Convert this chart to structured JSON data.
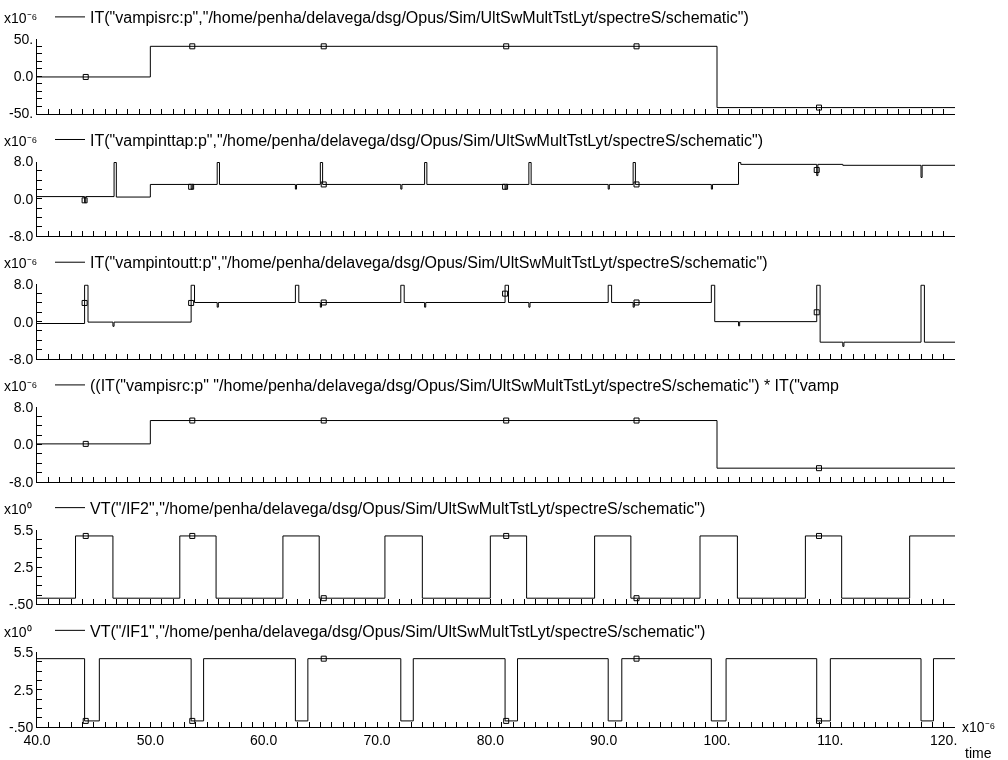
{
  "chart_data": [
    {
      "type": "step",
      "ylabel": "x10⁻⁶",
      "legend": "top left",
      "tick_labels": "y",
      "xlim": [
        40,
        121
      ],
      "xticks": [
        40,
        41,
        42,
        43,
        44,
        45,
        46,
        47,
        48,
        49,
        50,
        51,
        52,
        53,
        54,
        55,
        56,
        57,
        58,
        59,
        60,
        61,
        62,
        63,
        64,
        65,
        66,
        67,
        68,
        69,
        70,
        71,
        72,
        73,
        74,
        75,
        76,
        77,
        78,
        79,
        80,
        81,
        82,
        83,
        84,
        85,
        86,
        87,
        88,
        89,
        90,
        91,
        92,
        93,
        94,
        95,
        96,
        97,
        98,
        99,
        100,
        101,
        102,
        103,
        104,
        105,
        106,
        107,
        108,
        109,
        110,
        111,
        112,
        113,
        114,
        115,
        116,
        117,
        118,
        119,
        120
      ],
      "ylim": [
        -50,
        50
      ],
      "yticks": [
        {
          "value": -50,
          "label": "-50."
        },
        {
          "value": -40,
          "label": null
        },
        {
          "value": -30,
          "label": null
        },
        {
          "value": -20,
          "label": null
        },
        {
          "value": -10,
          "label": null
        },
        {
          "value": 0,
          "label": "0.0"
        },
        {
          "value": 10,
          "label": null
        },
        {
          "value": 20,
          "label": null
        },
        {
          "value": 30,
          "label": null
        },
        {
          "value": 40,
          "label": null
        },
        {
          "value": 50,
          "label": "50."
        }
      ],
      "series": [
        {
          "name": "IT(\"vampisrc:p\",\"/home/penha/delavega/dsg/Opus/Sim/UltSwMultTstLyt/spectreS/schematic\")",
          "color": "#000000",
          "x": [
            40,
            50,
            100,
            121
          ],
          "values": [
            -1,
            40,
            -42,
            -42
          ]
        },
        {
          "type": "scatter",
          "marker": "square",
          "color": "#000000",
          "x": [
            44.3,
            53.7,
            65.3,
            81.4,
            92.9,
            109.0
          ],
          "values": [
            -1,
            40,
            40,
            40,
            40,
            -42
          ]
        }
      ]
    },
    {
      "type": "step",
      "ylabel": "x10⁻⁶",
      "legend": "top left",
      "tick_labels": "y",
      "xlim": [
        40,
        121
      ],
      "xticks": [
        40,
        41,
        42,
        43,
        44,
        45,
        46,
        47,
        48,
        49,
        50,
        51,
        52,
        53,
        54,
        55,
        56,
        57,
        58,
        59,
        60,
        61,
        62,
        63,
        64,
        65,
        66,
        67,
        68,
        69,
        70,
        71,
        72,
        73,
        74,
        75,
        76,
        77,
        78,
        79,
        80,
        81,
        82,
        83,
        84,
        85,
        86,
        87,
        88,
        89,
        90,
        91,
        92,
        93,
        94,
        95,
        96,
        97,
        98,
        99,
        100,
        101,
        102,
        103,
        104,
        105,
        106,
        107,
        108,
        109,
        110,
        111,
        112,
        113,
        114,
        115,
        116,
        117,
        118,
        119,
        120
      ],
      "ylim": [
        -8,
        8
      ],
      "yticks": [
        {
          "value": -8,
          "label": "-8.0"
        },
        {
          "value": -6,
          "label": null
        },
        {
          "value": -4,
          "label": null
        },
        {
          "value": -2,
          "label": null
        },
        {
          "value": 0,
          "label": "0.0"
        },
        {
          "value": 2,
          "label": null
        },
        {
          "value": 4,
          "label": null
        },
        {
          "value": 6,
          "label": null
        },
        {
          "value": 8,
          "label": "8.0"
        }
      ],
      "series": [
        {
          "name": "IT(\"vampinttap:p\",\"/home/penha/delavega/dsg/Opus/Sim/UltSwMultTstLyt/spectreS/schematic\")",
          "color": "#000000",
          "x": [
            40,
            44.2,
            44.3,
            46.8,
            47.0,
            50.0,
            53.6,
            53.7,
            55.9,
            56.1,
            62.8,
            62.9,
            65.0,
            65.2,
            72.1,
            72.2,
            74.2,
            74.4,
            81.3,
            81.4,
            83.4,
            83.6,
            90.4,
            90.5,
            92.6,
            92.8,
            99.5,
            99.6,
            101.9,
            102.1,
            108.8,
            108.9,
            111.1,
            118.0,
            118.1,
            121
          ],
          "values": [
            0.5,
            -0.8,
            0.5,
            7.8,
            0.4,
            3.1,
            2.1,
            3.1,
            7.8,
            3.1,
            2.1,
            3.1,
            7.8,
            3.1,
            2.1,
            3.1,
            7.8,
            3.1,
            2.1,
            3.1,
            7.8,
            3.1,
            2.1,
            3.1,
            7.8,
            3.1,
            2.1,
            3.1,
            7.8,
            7.4,
            5.0,
            7.4,
            7.2,
            4.6,
            7.2,
            7.2
          ]
        },
        {
          "type": "scatter",
          "marker": "square",
          "color": "#000000",
          "x": [
            44.2,
            53.6,
            65.3,
            81.3,
            92.9,
            108.8
          ],
          "values": [
            -0.3,
            2.6,
            3.1,
            2.6,
            3.1,
            6.2
          ]
        }
      ]
    },
    {
      "type": "step",
      "ylabel": "x10⁻⁶",
      "legend": "top left",
      "tick_labels": "y",
      "xlim": [
        40,
        121
      ],
      "xticks": [
        40,
        41,
        42,
        43,
        44,
        45,
        46,
        47,
        48,
        49,
        50,
        51,
        52,
        53,
        54,
        55,
        56,
        57,
        58,
        59,
        60,
        61,
        62,
        63,
        64,
        65,
        66,
        67,
        68,
        69,
        70,
        71,
        72,
        73,
        74,
        75,
        76,
        77,
        78,
        79,
        80,
        81,
        82,
        83,
        84,
        85,
        86,
        87,
        88,
        89,
        90,
        91,
        92,
        93,
        94,
        95,
        96,
        97,
        98,
        99,
        100,
        101,
        102,
        103,
        104,
        105,
        106,
        107,
        108,
        109,
        110,
        111,
        112,
        113,
        114,
        115,
        116,
        117,
        118,
        119,
        120
      ],
      "ylim": [
        -8,
        8
      ],
      "yticks": [
        {
          "value": -8,
          "label": "-8.0"
        },
        {
          "value": -6,
          "label": null
        },
        {
          "value": -4,
          "label": null
        },
        {
          "value": -2,
          "label": null
        },
        {
          "value": 0,
          "label": "0.0"
        },
        {
          "value": 2,
          "label": null
        },
        {
          "value": 4,
          "label": null
        },
        {
          "value": 6,
          "label": null
        },
        {
          "value": 8,
          "label": "8.0"
        }
      ],
      "series": [
        {
          "name": "IT(\"vampintoutt:p\",\"/home/penha/delavega/dsg/Opus/Sim/UltSwMultTstLyt/spectreS/schematic\")",
          "color": "#000000",
          "x": [
            40,
            44.2,
            44.5,
            46.7,
            46.8,
            53.6,
            53.9,
            55.9,
            56.0,
            62.8,
            63.1,
            65.0,
            65.1,
            72.1,
            72.4,
            74.2,
            74.3,
            81.3,
            81.6,
            83.4,
            83.5,
            90.4,
            90.7,
            92.6,
            92.7,
            99.5,
            99.8,
            101.9,
            102.0,
            108.8,
            109.1,
            111.1,
            111.2,
            118.0,
            118.3,
            121
          ],
          "values": [
            -0.4,
            7.8,
            -0.1,
            -1.0,
            -0.1,
            7.8,
            4.1,
            3.1,
            4.1,
            7.8,
            4.1,
            3.1,
            4.1,
            7.8,
            4.1,
            3.1,
            4.1,
            7.8,
            4.1,
            3.1,
            4.1,
            7.8,
            4.1,
            3.1,
            4.1,
            7.8,
            0.0,
            -0.9,
            0.0,
            7.8,
            -4.4,
            -5.3,
            -4.4,
            7.8,
            -4.4,
            -4.4
          ]
        },
        {
          "type": "scatter",
          "marker": "square",
          "color": "#000000",
          "x": [
            44.2,
            53.6,
            65.3,
            81.3,
            92.9,
            108.8
          ],
          "values": [
            4.0,
            4.0,
            4.1,
            6.0,
            4.1,
            2.0
          ]
        }
      ]
    },
    {
      "type": "step",
      "ylabel": "x10⁻⁶",
      "legend": "top left",
      "tick_labels": "y",
      "xlim": [
        40,
        121
      ],
      "xticks": [
        40,
        41,
        42,
        43,
        44,
        45,
        46,
        47,
        48,
        49,
        50,
        51,
        52,
        53,
        54,
        55,
        56,
        57,
        58,
        59,
        60,
        61,
        62,
        63,
        64,
        65,
        66,
        67,
        68,
        69,
        70,
        71,
        72,
        73,
        74,
        75,
        76,
        77,
        78,
        79,
        80,
        81,
        82,
        83,
        84,
        85,
        86,
        87,
        88,
        89,
        90,
        91,
        92,
        93,
        94,
        95,
        96,
        97,
        98,
        99,
        100,
        101,
        102,
        103,
        104,
        105,
        106,
        107,
        108,
        109,
        110,
        111,
        112,
        113,
        114,
        115,
        116,
        117,
        118,
        119,
        120
      ],
      "ylim": [
        -8,
        8
      ],
      "yticks": [
        {
          "value": -8,
          "label": "-8.0"
        },
        {
          "value": -6,
          "label": null
        },
        {
          "value": -4,
          "label": null
        },
        {
          "value": -2,
          "label": null
        },
        {
          "value": 0,
          "label": "0.0"
        },
        {
          "value": 2,
          "label": null
        },
        {
          "value": 4,
          "label": null
        },
        {
          "value": 6,
          "label": null
        },
        {
          "value": 8,
          "label": "8.0"
        }
      ],
      "series": [
        {
          "name": "((IT(\"vampisrc:p\" \"/home/penha/delavega/dsg/Opus/Sim/UltSwMultTstLyt/spectreS/schematic\") * IT(\"vamp",
          "color": "#000000",
          "x": [
            40,
            50,
            100,
            121
          ],
          "values": [
            0.1,
            5.1,
            -5.1,
            -5.1
          ]
        },
        {
          "type": "scatter",
          "marker": "square",
          "color": "#000000",
          "x": [
            44.3,
            53.7,
            65.3,
            81.4,
            92.9,
            109.0
          ],
          "values": [
            0.1,
            5.1,
            5.1,
            5.1,
            5.1,
            -5.1
          ]
        }
      ]
    },
    {
      "type": "step",
      "ylabel": "x10⁰",
      "legend": "top left",
      "tick_labels": "y",
      "xlim": [
        40,
        121
      ],
      "xticks": [
        40,
        41,
        42,
        43,
        44,
        45,
        46,
        47,
        48,
        49,
        50,
        51,
        52,
        53,
        54,
        55,
        56,
        57,
        58,
        59,
        60,
        61,
        62,
        63,
        64,
        65,
        66,
        67,
        68,
        69,
        70,
        71,
        72,
        73,
        74,
        75,
        76,
        77,
        78,
        79,
        80,
        81,
        82,
        83,
        84,
        85,
        86,
        87,
        88,
        89,
        90,
        91,
        92,
        93,
        94,
        95,
        96,
        97,
        98,
        99,
        100,
        101,
        102,
        103,
        104,
        105,
        106,
        107,
        108,
        109,
        110,
        111,
        112,
        113,
        114,
        115,
        116,
        117,
        118,
        119,
        120
      ],
      "ylim": [
        -0.5,
        5.5
      ],
      "yticks": [
        {
          "value": -0.5,
          "label": "-.50"
        },
        {
          "value": 0.25,
          "label": null
        },
        {
          "value": 1,
          "label": null
        },
        {
          "value": 1.75,
          "label": null
        },
        {
          "value": 2.5,
          "label": "2.5"
        },
        {
          "value": 3.25,
          "label": null
        },
        {
          "value": 4,
          "label": null
        },
        {
          "value": 4.75,
          "label": null
        },
        {
          "value": 5.5,
          "label": "5.5"
        }
      ],
      "series": [
        {
          "name": "VT(\"/IF2\",\"/home/penha/delavega/dsg/Opus/Sim/UltSwMultTstLyt/spectreS/schematic\")",
          "color": "#000000",
          "x": [
            40,
            43.4,
            46.7,
            52.6,
            55.8,
            61.7,
            64.9,
            70.7,
            74.0,
            80.0,
            83.2,
            89.2,
            92.4,
            98.5,
            101.8,
            107.8,
            111.0,
            117.0,
            121
          ],
          "values": [
            0,
            5,
            0,
            5,
            0,
            5,
            0,
            5,
            0,
            5,
            0,
            5,
            0,
            5,
            0,
            5,
            0,
            5,
            5
          ]
        },
        {
          "type": "scatter",
          "marker": "square",
          "color": "#000000",
          "x": [
            44.3,
            53.7,
            65.3,
            81.4,
            92.9,
            109.0
          ],
          "values": [
            5,
            5,
            0,
            5,
            0,
            5
          ]
        }
      ]
    },
    {
      "type": "step",
      "ylabel": "x10⁰",
      "legend": "top left",
      "xlabel": "time",
      "annotations": [
        "x10⁻⁶"
      ],
      "xlim": [
        40,
        121
      ],
      "xticks": [
        {
          "value": 40,
          "label": "40.0"
        },
        {
          "value": 41,
          "label": null
        },
        {
          "value": 42,
          "label": null
        },
        {
          "value": 43,
          "label": null
        },
        {
          "value": 44,
          "label": null
        },
        {
          "value": 45,
          "label": null
        },
        {
          "value": 46,
          "label": null
        },
        {
          "value": 47,
          "label": null
        },
        {
          "value": 48,
          "label": null
        },
        {
          "value": 49,
          "label": null
        },
        {
          "value": 50,
          "label": "50.0"
        },
        {
          "value": 51,
          "label": null
        },
        {
          "value": 52,
          "label": null
        },
        {
          "value": 53,
          "label": null
        },
        {
          "value": 54,
          "label": null
        },
        {
          "value": 55,
          "label": null
        },
        {
          "value": 56,
          "label": null
        },
        {
          "value": 57,
          "label": null
        },
        {
          "value": 58,
          "label": null
        },
        {
          "value": 59,
          "label": null
        },
        {
          "value": 60,
          "label": "60.0"
        },
        {
          "value": 61,
          "label": null
        },
        {
          "value": 62,
          "label": null
        },
        {
          "value": 63,
          "label": null
        },
        {
          "value": 64,
          "label": null
        },
        {
          "value": 65,
          "label": null
        },
        {
          "value": 66,
          "label": null
        },
        {
          "value": 67,
          "label": null
        },
        {
          "value": 68,
          "label": null
        },
        {
          "value": 69,
          "label": null
        },
        {
          "value": 70,
          "label": "70.0"
        },
        {
          "value": 71,
          "label": null
        },
        {
          "value": 72,
          "label": null
        },
        {
          "value": 73,
          "label": null
        },
        {
          "value": 74,
          "label": null
        },
        {
          "value": 75,
          "label": null
        },
        {
          "value": 76,
          "label": null
        },
        {
          "value": 77,
          "label": null
        },
        {
          "value": 78,
          "label": null
        },
        {
          "value": 79,
          "label": null
        },
        {
          "value": 80,
          "label": "80.0"
        },
        {
          "value": 81,
          "label": null
        },
        {
          "value": 82,
          "label": null
        },
        {
          "value": 83,
          "label": null
        },
        {
          "value": 84,
          "label": null
        },
        {
          "value": 85,
          "label": null
        },
        {
          "value": 86,
          "label": null
        },
        {
          "value": 87,
          "label": null
        },
        {
          "value": 88,
          "label": null
        },
        {
          "value": 89,
          "label": null
        },
        {
          "value": 90,
          "label": "90.0"
        },
        {
          "value": 91,
          "label": null
        },
        {
          "value": 92,
          "label": null
        },
        {
          "value": 93,
          "label": null
        },
        {
          "value": 94,
          "label": null
        },
        {
          "value": 95,
          "label": null
        },
        {
          "value": 96,
          "label": null
        },
        {
          "value": 97,
          "label": null
        },
        {
          "value": 98,
          "label": null
        },
        {
          "value": 99,
          "label": null
        },
        {
          "value": 100,
          "label": "100."
        },
        {
          "value": 101,
          "label": null
        },
        {
          "value": 102,
          "label": null
        },
        {
          "value": 103,
          "label": null
        },
        {
          "value": 104,
          "label": null
        },
        {
          "value": 105,
          "label": null
        },
        {
          "value": 106,
          "label": null
        },
        {
          "value": 107,
          "label": null
        },
        {
          "value": 108,
          "label": null
        },
        {
          "value": 109,
          "label": null
        },
        {
          "value": 110,
          "label": "110."
        },
        {
          "value": 111,
          "label": null
        },
        {
          "value": 112,
          "label": null
        },
        {
          "value": 113,
          "label": null
        },
        {
          "value": 114,
          "label": null
        },
        {
          "value": 115,
          "label": null
        },
        {
          "value": 116,
          "label": null
        },
        {
          "value": 117,
          "label": null
        },
        {
          "value": 118,
          "label": null
        },
        {
          "value": 119,
          "label": null
        },
        {
          "value": 120,
          "label": "120."
        }
      ],
      "ylim": [
        -0.5,
        5.5
      ],
      "yticks": [
        {
          "value": -0.5,
          "label": "-.50"
        },
        {
          "value": 0.25,
          "label": null
        },
        {
          "value": 1,
          "label": null
        },
        {
          "value": 1.75,
          "label": null
        },
        {
          "value": 2.5,
          "label": "2.5"
        },
        {
          "value": 3.25,
          "label": null
        },
        {
          "value": 4,
          "label": null
        },
        {
          "value": 4.75,
          "label": null
        },
        {
          "value": 5.5,
          "label": "5.5"
        }
      ],
      "series": [
        {
          "name": "VT(\"/IF1\",\"/home/penha/delavega/dsg/Opus/Sim/UltSwMultTstLyt/spectreS/schematic\")",
          "color": "#000000",
          "x": [
            40,
            44.2,
            45.5,
            53.6,
            54.7,
            62.8,
            63.9,
            72.1,
            73.2,
            81.3,
            82.4,
            90.4,
            91.6,
            99.5,
            100.8,
            108.8,
            110.0,
            118.0,
            119.1,
            121
          ],
          "values": [
            5,
            0,
            5,
            0,
            5,
            0,
            5,
            0,
            5,
            0,
            5,
            0,
            5,
            0,
            5,
            0,
            5,
            0,
            5,
            5
          ]
        },
        {
          "type": "scatter",
          "marker": "square",
          "color": "#000000",
          "x": [
            44.3,
            53.7,
            65.3,
            81.4,
            92.9,
            109.0
          ],
          "values": [
            0,
            0,
            5,
            0,
            5,
            0
          ]
        }
      ]
    }
  ]
}
